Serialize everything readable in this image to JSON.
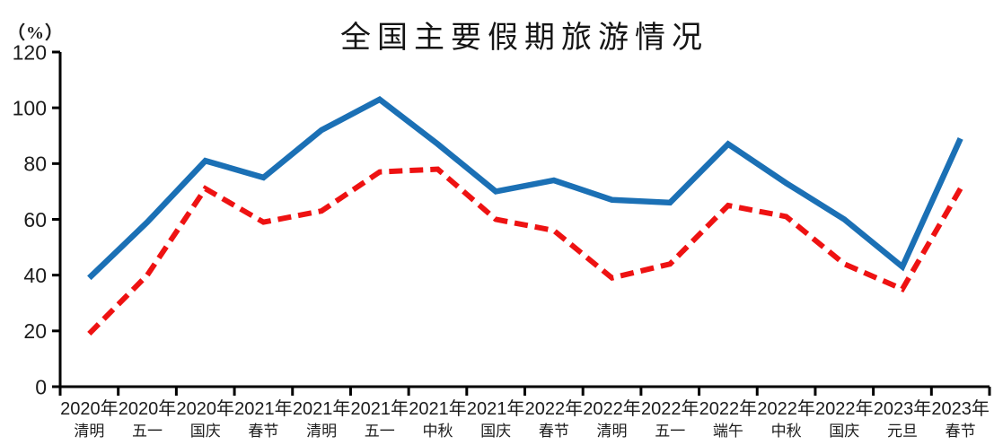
{
  "chart_data": {
    "type": "line",
    "title": "全国主要假期旅游情况",
    "unit_label": "（%）",
    "xlabel": "",
    "ylabel": "",
    "ylim": [
      0,
      120
    ],
    "y_ticks": [
      0,
      20,
      40,
      60,
      80,
      100,
      120
    ],
    "grid": false,
    "legend_position": "none",
    "axis_color": "#000000",
    "tick_label_color": "#1c1c1c",
    "categories": [
      {
        "year": "2020年",
        "holiday": "清明"
      },
      {
        "year": "2020年",
        "holiday": "五一"
      },
      {
        "year": "2020年",
        "holiday": "国庆"
      },
      {
        "year": "2021年",
        "holiday": "春节"
      },
      {
        "year": "2021年",
        "holiday": "清明"
      },
      {
        "year": "2021年",
        "holiday": "五一"
      },
      {
        "year": "2021年",
        "holiday": "中秋"
      },
      {
        "year": "2021年",
        "holiday": "国庆"
      },
      {
        "year": "2022年",
        "holiday": "春节"
      },
      {
        "year": "2022年",
        "holiday": "清明"
      },
      {
        "year": "2022年",
        "holiday": "五一"
      },
      {
        "year": "2022年",
        "holiday": "端午"
      },
      {
        "year": "2022年",
        "holiday": "中秋"
      },
      {
        "year": "2022年",
        "holiday": "国庆"
      },
      {
        "year": "2023年",
        "holiday": "元旦"
      },
      {
        "year": "2023年",
        "holiday": "春节"
      }
    ],
    "series": [
      {
        "name": "solid-blue-line",
        "color": "#1b70b5",
        "dash": "solid",
        "stroke_width": 6.5,
        "values": [
          39,
          59,
          81,
          75,
          92,
          103,
          87,
          70,
          74,
          67,
          66,
          87,
          73,
          60,
          43,
          89
        ]
      },
      {
        "name": "dashed-red-line",
        "color": "#ee1212",
        "dash": "dashed",
        "stroke_width": 6,
        "values": [
          19,
          40,
          71,
          59,
          63,
          77,
          78,
          60,
          56,
          39,
          44,
          65,
          61,
          44,
          35,
          71
        ]
      }
    ]
  }
}
